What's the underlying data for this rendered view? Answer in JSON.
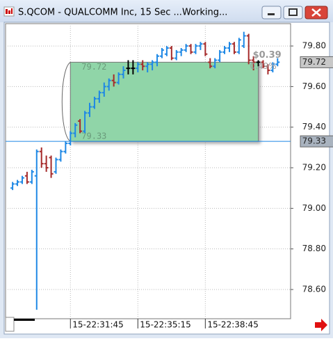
{
  "window": {
    "title": "S.QCOM - QUALCOMM Inc, 15 Sec ...Working..."
  },
  "chart_data": {
    "type": "ohlc",
    "up_color": "#1e88e5",
    "down_color": "#a52a2a",
    "flat_color": "#000000",
    "open": [
      79.1,
      79.12,
      79.13,
      79.16,
      79.13,
      79.16,
      79.28,
      79.22,
      79.25,
      79.18,
      79.24,
      79.28,
      79.32,
      79.37,
      79.43,
      79.38,
      79.47,
      79.5,
      79.54,
      79.57,
      79.6,
      79.63,
      79.62,
      79.66,
      79.69,
      79.69,
      79.69,
      79.71,
      79.7,
      79.71,
      79.72,
      79.75,
      79.76,
      79.79,
      79.74,
      79.77,
      79.78,
      79.8,
      79.77,
      79.8,
      79.81,
      79.72,
      79.7,
      79.73,
      79.77,
      79.79,
      79.81,
      79.77,
      79.8,
      79.85,
      79.73,
      79.72,
      79.72,
      79.7,
      79.68,
      79.71
    ],
    "high": [
      79.13,
      79.14,
      79.16,
      79.18,
      79.19,
      79.29,
      79.3,
      79.26,
      79.26,
      79.25,
      79.29,
      79.33,
      79.38,
      79.42,
      79.44,
      79.48,
      79.52,
      79.55,
      79.58,
      79.62,
      79.64,
      79.66,
      79.67,
      79.7,
      79.73,
      79.73,
      79.72,
      79.73,
      79.72,
      79.73,
      79.76,
      79.79,
      79.8,
      79.8,
      79.78,
      79.79,
      79.81,
      79.81,
      79.81,
      79.82,
      79.82,
      79.74,
      79.74,
      79.78,
      79.8,
      79.82,
      79.82,
      79.84,
      79.87,
      79.86,
      79.75,
      79.73,
      79.73,
      79.71,
      79.72,
      79.74
    ],
    "low": [
      79.09,
      79.11,
      79.12,
      79.12,
      79.12,
      78.5,
      79.2,
      79.18,
      79.15,
      79.17,
      79.23,
      79.27,
      79.31,
      79.35,
      79.37,
      79.37,
      79.45,
      79.49,
      79.52,
      79.55,
      79.58,
      79.6,
      79.61,
      79.64,
      79.66,
      79.66,
      79.67,
      79.68,
      79.67,
      79.68,
      79.7,
      79.74,
      79.75,
      79.73,
      79.73,
      79.75,
      79.77,
      79.76,
      79.76,
      79.78,
      79.75,
      79.69,
      79.69,
      79.72,
      79.76,
      79.77,
      79.76,
      79.76,
      79.79,
      79.71,
      79.68,
      79.7,
      79.69,
      79.66,
      79.67,
      79.7
    ],
    "close": [
      79.12,
      79.13,
      79.15,
      79.13,
      79.18,
      79.28,
      79.22,
      79.2,
      79.17,
      79.24,
      79.28,
      79.32,
      79.37,
      79.41,
      79.38,
      79.47,
      79.5,
      79.54,
      79.57,
      79.6,
      79.63,
      79.62,
      79.66,
      79.68,
      79.69,
      79.69,
      79.71,
      79.7,
      79.71,
      79.72,
      79.75,
      79.78,
      79.79,
      79.74,
      79.77,
      79.78,
      79.8,
      79.77,
      79.8,
      79.81,
      79.76,
      79.7,
      79.73,
      79.77,
      79.79,
      79.81,
      79.77,
      79.83,
      79.85,
      79.73,
      79.72,
      79.72,
      79.7,
      79.68,
      79.71,
      79.72
    ],
    "xlim": [
      -1.46,
      57.7
    ],
    "xticks": [
      {
        "value": 12,
        "label": "15-22:31:45"
      },
      {
        "value": 26,
        "label": "15-22:35:15"
      },
      {
        "value": 40,
        "label": "15-22:38:45"
      }
    ],
    "ylim": [
      78.456,
      79.91
    ],
    "yticks": [
      {
        "value": 78.6,
        "label": "78.60"
      },
      {
        "value": 78.8,
        "label": "78.80"
      },
      {
        "value": 79.0,
        "label": "79.00"
      },
      {
        "value": 79.2,
        "label": "79.20"
      },
      {
        "value": 79.4,
        "label": "79.40"
      },
      {
        "value": 79.6,
        "label": "79.60"
      },
      {
        "value": 79.8,
        "label": "79.80"
      }
    ],
    "grid": true,
    "range": {
      "high": 79.72,
      "low": 79.33,
      "start": 12,
      "end": 51,
      "color": "#90d5a8",
      "change": {
        "value": 0.39,
        "label": "$0.39"
      },
      "change_pct": {
        "value": 0.49,
        "label": "0.49%"
      }
    }
  }
}
